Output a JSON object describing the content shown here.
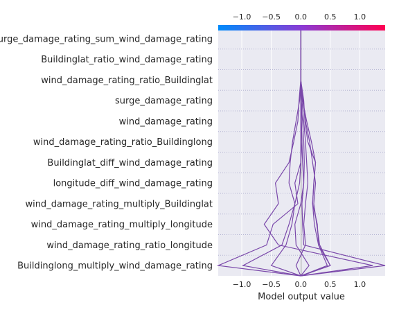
{
  "chart_data": {
    "type": "line",
    "xlabel": "Model output value",
    "ylabel": "",
    "title": "",
    "xlim": [
      -1.4,
      1.43
    ],
    "x_ticks": [
      -1.0,
      -0.5,
      0.0,
      0.5,
      1.0
    ],
    "x_tick_labels": [
      "−1.0",
      "−0.5",
      "0.0",
      "0.5",
      "1.0"
    ],
    "base_value": 0.0,
    "grid": true,
    "colormap": [
      "#008bfb",
      "#ff0052"
    ],
    "features": [
      "surge_damage_rating_sum_wind_damage_rating",
      "Buildinglat_ratio_wind_damage_rating",
      "wind_damage_rating_ratio_Buildinglat",
      "surge_damage_rating",
      "wind_damage_rating",
      "wind_damage_rating_ratio_Buildinglong",
      "Buildinglat_diff_wind_damage_rating",
      "longitude_diff_wind_damage_rating",
      "wind_damage_rating_multiply_Buildinglat",
      "wind_damage_rating_multiply_longitude",
      "wind_damage_rating_ratio_longitude",
      "Buildinglong_multiply_wind_damage_rating"
    ],
    "series": [
      {
        "values": [
          0.0,
          0.0,
          0.0,
          0.0,
          0.0,
          0.0,
          0.0,
          -0.1,
          -0.05,
          -0.47,
          -0.58,
          -1.4
        ]
      },
      {
        "values": [
          0.0,
          0.0,
          0.0,
          -0.03,
          -0.05,
          -0.12,
          -0.2,
          -0.43,
          -0.38,
          -0.62,
          -0.38,
          1.22
        ]
      },
      {
        "values": [
          0.0,
          0.0,
          0.0,
          0.02,
          0.01,
          0.02,
          0.0,
          -0.02,
          -0.1,
          -0.2,
          -0.32,
          -0.98
        ]
      },
      {
        "values": [
          0.0,
          0.0,
          0.0,
          0.0,
          0.01,
          0.02,
          0.03,
          0.05,
          0.0,
          -0.1,
          -0.08,
          0.14
        ]
      },
      {
        "values": [
          0.0,
          0.0,
          0.0,
          -0.02,
          -0.08,
          -0.14,
          -0.18,
          -0.2,
          -0.1,
          -0.15,
          -0.25,
          -0.5
        ]
      },
      {
        "values": [
          0.0,
          0.0,
          0.0,
          0.02,
          0.05,
          0.08,
          0.1,
          0.12,
          0.08,
          0.05,
          0.08,
          -0.08
        ]
      },
      {
        "values": [
          0.0,
          0.0,
          0.0,
          0.03,
          0.1,
          0.18,
          0.25,
          0.22,
          0.2,
          0.28,
          0.3,
          0.5
        ]
      },
      {
        "values": [
          0.0,
          0.0,
          0.0,
          0.04,
          0.08,
          0.15,
          0.2,
          0.25,
          0.22,
          0.27,
          0.32,
          0.5
        ]
      },
      {
        "values": [
          0.0,
          0.0,
          0.0,
          0.05,
          0.07,
          0.12,
          0.25,
          0.22,
          0.2,
          0.23,
          0.3,
          0.45
        ]
      },
      {
        "values": [
          0.0,
          0.0,
          0.0,
          0.0,
          0.03,
          0.05,
          0.06,
          0.05,
          0.02,
          0.03,
          0.05,
          1.43
        ]
      }
    ]
  }
}
